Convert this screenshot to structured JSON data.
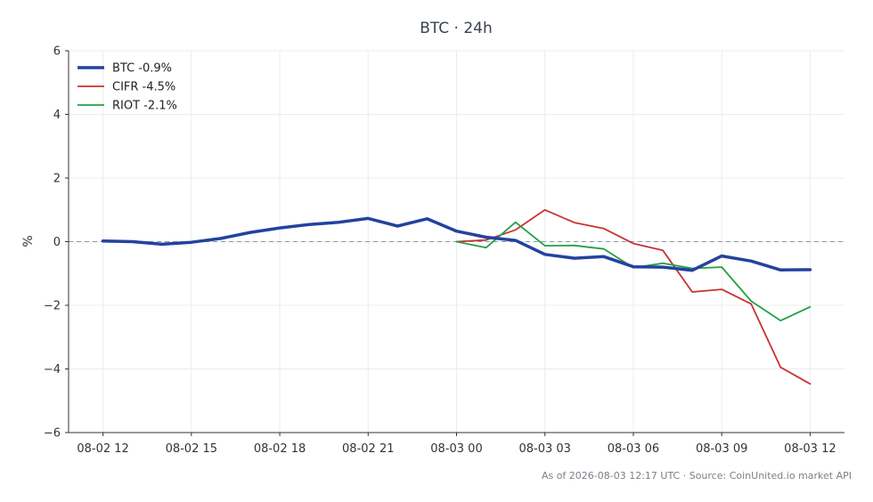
{
  "chart_data": {
    "type": "line",
    "title": "BTC · 24h",
    "xlabel": "",
    "ylabel": "%",
    "ylim": [
      -6,
      6
    ],
    "xlim": [
      "2026-08-02 10:50",
      "2026-08-03 13:10"
    ],
    "yticks": [
      6,
      4,
      2,
      0,
      -2,
      -4,
      -6
    ],
    "yticks_labels": [
      "6",
      "4",
      "2",
      "0",
      "−2",
      "−4",
      "−6"
    ],
    "xticks": [
      "2026-08-02 12:00",
      "2026-08-02 15:00",
      "2026-08-02 18:00",
      "2026-08-02 21:00",
      "2026-08-03 00:00",
      "2026-08-03 03:00",
      "2026-08-03 06:00",
      "2026-08-03 09:00",
      "2026-08-03 12:00"
    ],
    "xticks_labels": [
      "08-02 12",
      "08-02 15",
      "08-02 18",
      "08-02 21",
      "08-03 00",
      "08-03 03",
      "08-03 06",
      "08-03 09",
      "08-03 12"
    ],
    "grid": true,
    "reference_line": 0,
    "legend_position": "top-left",
    "series": [
      {
        "name": "BTC -0.9%",
        "color": "#2342a0",
        "x": [
          "2026-08-02 12:00",
          "2026-08-02 13:00",
          "2026-08-02 14:00",
          "2026-08-02 15:00",
          "2026-08-02 16:00",
          "2026-08-02 17:00",
          "2026-08-02 18:00",
          "2026-08-02 19:00",
          "2026-08-02 20:00",
          "2026-08-02 21:00",
          "2026-08-02 22:00",
          "2026-08-02 23:00",
          "2026-08-03 00:00",
          "2026-08-03 01:00",
          "2026-08-03 02:00",
          "2026-08-03 03:00",
          "2026-08-03 04:00",
          "2026-08-03 05:00",
          "2026-08-03 06:00",
          "2026-08-03 07:00",
          "2026-08-03 08:00",
          "2026-08-03 09:00",
          "2026-08-03 10:00",
          "2026-08-03 11:00",
          "2026-08-03 12:00"
        ],
        "values": [
          0.02,
          0.0,
          -0.08,
          -0.02,
          0.1,
          0.29,
          0.43,
          0.54,
          0.61,
          0.73,
          0.49,
          0.72,
          0.33,
          0.14,
          0.04,
          -0.4,
          -0.52,
          -0.47,
          -0.79,
          -0.8,
          -0.9,
          -0.45,
          -0.61,
          -0.89,
          -0.88
        ]
      },
      {
        "name": "CIFR -4.5%",
        "color": "#c83232",
        "x": [
          "2026-08-03 00:00",
          "2026-08-03 01:00",
          "2026-08-03 02:00",
          "2026-08-03 03:00",
          "2026-08-03 04:00",
          "2026-08-03 05:00",
          "2026-08-03 06:00",
          "2026-08-03 07:00",
          "2026-08-03 08:00",
          "2026-08-03 09:00",
          "2026-08-03 10:00",
          "2026-08-03 11:00",
          "2026-08-03 12:00"
        ],
        "values": [
          0.0,
          0.05,
          0.37,
          1.0,
          0.6,
          0.41,
          -0.06,
          -0.27,
          -1.58,
          -1.5,
          -1.96,
          -3.95,
          -4.47
        ]
      },
      {
        "name": "RIOT -2.1%",
        "color": "#23a045",
        "x": [
          "2026-08-03 00:00",
          "2026-08-03 01:00",
          "2026-08-03 02:00",
          "2026-08-03 03:00",
          "2026-08-03 04:00",
          "2026-08-03 05:00",
          "2026-08-03 06:00",
          "2026-08-03 07:00",
          "2026-08-03 08:00",
          "2026-08-03 09:00",
          "2026-08-03 10:00",
          "2026-08-03 11:00",
          "2026-08-03 12:00"
        ],
        "values": [
          0.0,
          -0.19,
          0.61,
          -0.13,
          -0.12,
          -0.23,
          -0.82,
          -0.68,
          -0.84,
          -0.8,
          -1.87,
          -2.48,
          -2.05
        ]
      }
    ],
    "source_note": "As of 2026-08-03 12:17 UTC · Source: CoinUnited.io market API"
  }
}
